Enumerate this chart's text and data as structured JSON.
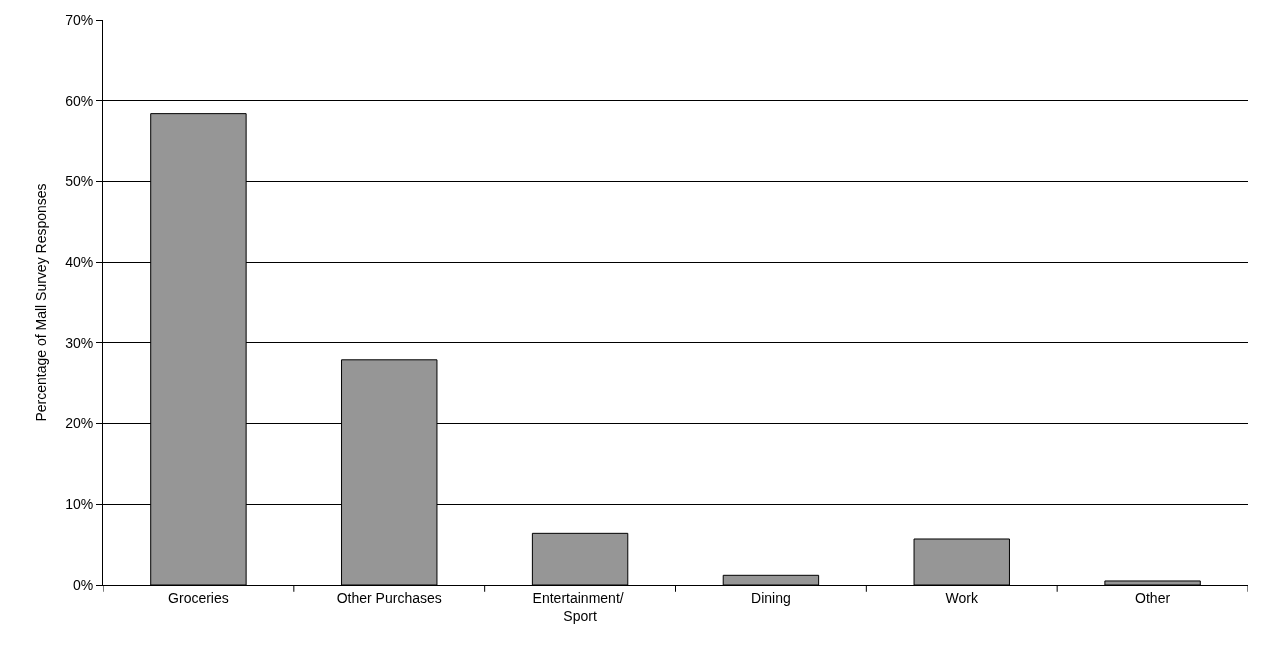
{
  "chart_data": {
    "type": "bar",
    "ylabel": "Percentage of Mall Survey Responses",
    "categories": [
      "Groceries",
      "Other Purchases",
      "Entertainment/ Sport",
      "Dining",
      "Work",
      "Other"
    ],
    "values": [
      58.4,
      27.9,
      6.4,
      1.2,
      5.7,
      0.5
    ],
    "color": "#969696",
    "ylim": [
      0,
      70
    ],
    "yticks": [
      {
        "value": 0,
        "label": "0%"
      },
      {
        "value": 10,
        "label": "10%"
      },
      {
        "value": 20,
        "label": "20%"
      },
      {
        "value": 30,
        "label": "30%"
      },
      {
        "value": 40,
        "label": "40%"
      },
      {
        "value": 50,
        "label": "50%"
      },
      {
        "value": 60,
        "label": "60%"
      },
      {
        "value": 70,
        "label": "70%"
      }
    ],
    "grid": "y"
  }
}
